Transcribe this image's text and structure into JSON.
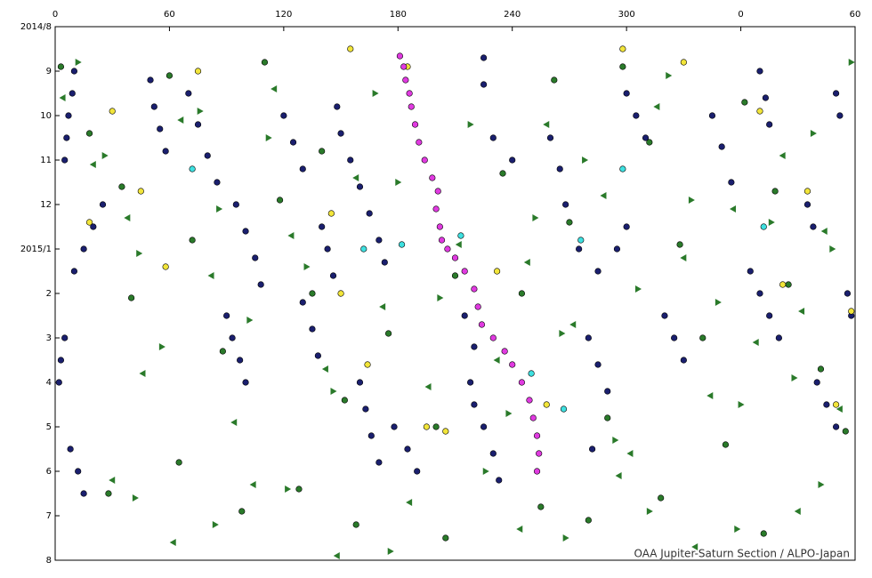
{
  "chart_data": {
    "type": "scatter",
    "annotation": "OAA Jupiter-Saturn Section / ALPO-Japan",
    "xlim": [
      0,
      420
    ],
    "ylim": [
      0,
      12
    ],
    "y_reversed": true,
    "x_ticks_position": "top",
    "xticks": [
      0,
      60,
      120,
      180,
      240,
      300,
      {
        "value": 360,
        "label": "0"
      },
      {
        "value": 420,
        "label": "60"
      }
    ],
    "yticks": [
      {
        "value": 0,
        "label": "2014/8"
      },
      {
        "value": 1,
        "label": "9"
      },
      {
        "value": 2,
        "label": "10"
      },
      {
        "value": 3,
        "label": "11"
      },
      {
        "value": 4,
        "label": "12"
      },
      {
        "value": 5,
        "label": "2015/1"
      },
      {
        "value": 6,
        "label": "2"
      },
      {
        "value": 7,
        "label": "3"
      },
      {
        "value": 8,
        "label": "4"
      },
      {
        "value": 9,
        "label": "5"
      },
      {
        "value": 10,
        "label": "6"
      },
      {
        "value": 11,
        "label": "7"
      },
      {
        "value": 12,
        "label": "8"
      }
    ],
    "series": [
      {
        "color": "#1a1f6e",
        "marker": "circle",
        "x": [
          10,
          9,
          7,
          6,
          5,
          25,
          20,
          15,
          10,
          5,
          3,
          2,
          8,
          12,
          15,
          50,
          52,
          55,
          58,
          70,
          75,
          80,
          85,
          95,
          100,
          105,
          108,
          90,
          93,
          97,
          100,
          120,
          125,
          130,
          140,
          143,
          146,
          130,
          135,
          138,
          148,
          150,
          155,
          160,
          165,
          170,
          173,
          160,
          163,
          166,
          170,
          178,
          185,
          190,
          225,
          225,
          230,
          240,
          215,
          220,
          218,
          220,
          225,
          230,
          233,
          260,
          265,
          268,
          275,
          285,
          295,
          300,
          280,
          285,
          290,
          282,
          300,
          305,
          310,
          320,
          325,
          330,
          345,
          350,
          355,
          370,
          373,
          375,
          365,
          370,
          375,
          380,
          400,
          405,
          410,
          410,
          412,
          416,
          418,
          395,
          398
        ],
        "y": [
          1.0,
          1.5,
          2.0,
          2.5,
          3.0,
          4.0,
          4.5,
          5.0,
          5.5,
          7.0,
          7.5,
          8.0,
          9.5,
          10.0,
          10.5,
          1.2,
          1.8,
          2.3,
          2.8,
          1.5,
          2.2,
          2.9,
          3.5,
          4.0,
          4.6,
          5.2,
          5.8,
          6.5,
          7.0,
          7.5,
          8.0,
          2.0,
          2.6,
          3.2,
          4.5,
          5.0,
          5.6,
          6.2,
          6.8,
          7.4,
          1.8,
          2.4,
          3.0,
          3.6,
          4.2,
          4.8,
          5.3,
          8.0,
          8.6,
          9.2,
          9.8,
          9.0,
          9.5,
          10.0,
          0.7,
          1.3,
          2.5,
          3.0,
          6.5,
          7.2,
          8.0,
          8.5,
          9.0,
          9.6,
          10.2,
          2.5,
          3.2,
          4.0,
          5.0,
          5.5,
          5.0,
          4.5,
          7.0,
          7.6,
          8.2,
          9.5,
          1.5,
          2.0,
          2.5,
          6.5,
          7.0,
          7.5,
          2.0,
          2.7,
          3.5,
          1.0,
          1.6,
          2.2,
          5.5,
          6.0,
          6.5,
          7.0,
          8.0,
          8.5,
          9.0,
          1.5,
          2.0,
          6.0,
          6.5,
          4.0,
          4.5
        ]
      },
      {
        "color": "#2a7a2a",
        "marker": "circle",
        "x": [
          3,
          18,
          35,
          40,
          60,
          72,
          88,
          110,
          118,
          135,
          140,
          152,
          175,
          200,
          210,
          235,
          245,
          262,
          270,
          290,
          298,
          312,
          328,
          340,
          352,
          362,
          378,
          385,
          402,
          415,
          28,
          65,
          98,
          128,
          158,
          205,
          255,
          280,
          318,
          372
        ],
        "y": [
          0.9,
          2.4,
          3.6,
          6.1,
          1.1,
          4.8,
          7.3,
          0.8,
          3.9,
          6.0,
          2.8,
          8.4,
          6.9,
          9.0,
          5.6,
          3.3,
          6.0,
          1.2,
          4.4,
          8.8,
          0.9,
          2.6,
          4.9,
          7.0,
          9.4,
          1.7,
          3.7,
          5.8,
          7.7,
          9.1,
          10.5,
          9.8,
          10.9,
          10.4,
          11.2,
          11.5,
          10.8,
          11.1,
          10.6,
          11.4
        ]
      },
      {
        "color": "#2a7a2a",
        "marker": "triangle-left",
        "x": [
          4,
          20,
          38,
          46,
          66,
          82,
          94,
          115,
          124,
          142,
          158,
          172,
          196,
          212,
          232,
          248,
          258,
          272,
          288,
          302,
          316,
          330,
          344,
          356,
          368,
          382,
          392,
          404,
          412,
          30,
          62,
          104,
          148,
          186,
          244,
          296,
          336,
          390
        ],
        "y": [
          1.6,
          3.1,
          4.3,
          7.8,
          2.1,
          5.6,
          8.9,
          1.4,
          4.7,
          7.7,
          3.4,
          6.3,
          8.1,
          4.9,
          7.5,
          5.3,
          2.2,
          6.7,
          3.8,
          9.6,
          1.8,
          5.2,
          8.3,
          4.1,
          7.1,
          2.9,
          6.4,
          4.6,
          8.6,
          10.2,
          11.6,
          10.3,
          11.9,
          10.7,
          11.3,
          10.1,
          11.7,
          10.9
        ]
      },
      {
        "color": "#2a7a2a",
        "marker": "triangle-right",
        "x": [
          12,
          26,
          44,
          56,
          76,
          86,
          102,
          112,
          132,
          146,
          168,
          180,
          202,
          218,
          238,
          252,
          266,
          278,
          294,
          306,
          322,
          334,
          348,
          360,
          376,
          388,
          398,
          408,
          418,
          42,
          84,
          122,
          176,
          226,
          268,
          312,
          358,
          402
        ],
        "y": [
          0.8,
          2.9,
          5.1,
          7.2,
          1.9,
          4.1,
          6.6,
          2.5,
          5.4,
          8.2,
          1.5,
          3.5,
          6.1,
          2.2,
          8.7,
          4.3,
          6.9,
          3.0,
          9.3,
          5.9,
          1.1,
          3.9,
          6.2,
          8.5,
          4.4,
          7.9,
          2.4,
          5.0,
          0.8,
          10.6,
          11.2,
          10.4,
          11.8,
          10.0,
          11.5,
          10.9,
          11.3,
          10.3
        ]
      },
      {
        "color": "#f2e53a",
        "marker": "circle",
        "x": [
          18,
          30,
          45,
          58,
          75,
          145,
          150,
          155,
          164,
          185,
          195,
          205,
          232,
          258,
          298,
          330,
          370,
          382,
          395,
          410,
          418
        ],
        "y": [
          4.4,
          1.9,
          3.7,
          5.4,
          1.0,
          4.2,
          6.0,
          0.5,
          7.6,
          0.9,
          9.0,
          9.1,
          5.5,
          8.5,
          0.5,
          0.8,
          1.9,
          5.8,
          3.7,
          8.5,
          6.4
        ]
      },
      {
        "color": "#3ee0e0",
        "marker": "circle",
        "x": [
          72,
          162,
          182,
          213,
          250,
          267,
          276,
          298,
          372
        ],
        "y": [
          3.2,
          5.0,
          4.9,
          4.7,
          7.8,
          8.6,
          4.8,
          3.2,
          4.5
        ]
      },
      {
        "color": "#e03ae0",
        "marker": "circle",
        "x": [
          181,
          183,
          184,
          186,
          187,
          189,
          191,
          194,
          198,
          201,
          200,
          202,
          203,
          206,
          210,
          215,
          220,
          222,
          224,
          230,
          236,
          240,
          245,
          249,
          251,
          253,
          254,
          253
        ],
        "y": [
          0.66,
          0.9,
          1.2,
          1.5,
          1.8,
          2.2,
          2.6,
          3.0,
          3.4,
          3.7,
          4.1,
          4.5,
          4.8,
          5.0,
          5.2,
          5.5,
          5.9,
          6.3,
          6.7,
          7.0,
          7.3,
          7.6,
          8.0,
          8.4,
          8.8,
          9.2,
          9.6,
          10.0
        ]
      }
    ]
  }
}
